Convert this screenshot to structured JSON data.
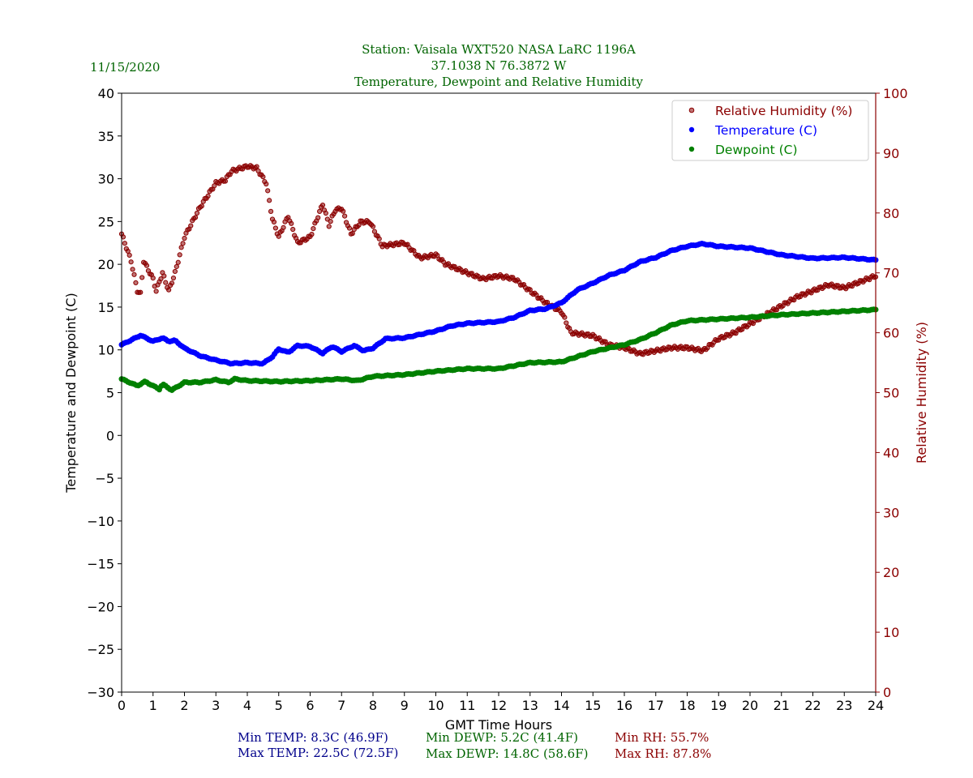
{
  "date": "11/15/2020",
  "title_lines": [
    "Station:  Vaisala WXT520  NASA LaRC 1196A",
    "37.1038 N 76.3872 W",
    "Temperature, Dewpoint and Relative Humidity"
  ],
  "stats": {
    "min_temp": "Min TEMP: 8.3C (46.9F)",
    "max_temp": "Max TEMP: 22.5C (72.5F)",
    "min_dewp": "Min DEWP: 5.2C (41.4F)",
    "max_dewp": "Max DEWP: 14.8C (58.6F)",
    "min_rh": "Min RH: 55.7%",
    "max_rh": "Max RH: 87.8%"
  },
  "colors": {
    "title": "#006400",
    "temp": "#0000ff",
    "dewp": "#008000",
    "rh": "#8b0000",
    "stat_temp": "#00008b"
  },
  "chart_data": {
    "type": "scatter",
    "xlabel": "GMT Time Hours",
    "ylabel": "Temperature and Dewpoint (C)",
    "y2label": "Relative Humidity (%)",
    "xlim": [
      0,
      24
    ],
    "ylim": [
      -30,
      40
    ],
    "y2lim": [
      0,
      100
    ],
    "xticks": [
      0,
      1,
      2,
      3,
      4,
      5,
      6,
      7,
      8,
      9,
      10,
      11,
      12,
      13,
      14,
      15,
      16,
      17,
      18,
      19,
      20,
      21,
      22,
      23,
      24
    ],
    "yticks": [
      -30,
      -25,
      -20,
      -15,
      -10,
      -5,
      0,
      5,
      10,
      15,
      20,
      25,
      30,
      35,
      40
    ],
    "y2ticks": [
      0,
      10,
      20,
      30,
      40,
      50,
      60,
      70,
      80,
      90,
      100
    ],
    "grid": false,
    "legend": "top-right",
    "series": [
      {
        "name": "Relative Humidity (%)",
        "axis": "right",
        "color": "#8b0000",
        "x": [
          0,
          0.3,
          0.5,
          0.6,
          0.7,
          1,
          1.1,
          1.3,
          1.5,
          1.7,
          2,
          2.5,
          3,
          3.3,
          3.5,
          4,
          4.3,
          4.6,
          4.8,
          5,
          5.3,
          5.6,
          6,
          6.4,
          6.6,
          6.8,
          7,
          7.3,
          7.6,
          7.9,
          8.3,
          9,
          9.5,
          10,
          10.3,
          11,
          11.5,
          12,
          12.5,
          13,
          13.5,
          14,
          14.3,
          15,
          15.5,
          16,
          16.5,
          17,
          17.5,
          18,
          18.5,
          19,
          19.5,
          20,
          20.5,
          21,
          21.5,
          22,
          22.5,
          23,
          23.5,
          24
        ],
        "y": [
          76.5,
          72,
          67,
          66.5,
          72,
          69,
          67,
          70,
          67,
          70,
          76,
          81,
          85,
          85.5,
          87,
          87.8,
          87.5,
          85,
          79,
          76,
          79.5,
          75,
          76,
          81.5,
          78,
          80.5,
          80.8,
          76.5,
          78.5,
          78.5,
          74.5,
          75,
          72.5,
          73,
          71.5,
          70,
          69,
          69.5,
          69,
          67,
          65,
          63.5,
          60,
          59.5,
          58,
          57.5,
          56.5,
          57,
          57.5,
          57.5,
          57,
          59,
          60,
          61.5,
          63,
          64.5,
          66,
          67,
          68,
          67.5,
          68.5,
          69.5
        ]
      },
      {
        "name": "Temperature (C)",
        "axis": "left",
        "color": "#0000ff",
        "x": [
          0,
          0.5,
          0.6,
          1,
          1.3,
          1.5,
          1.7,
          2,
          2.5,
          3,
          3.5,
          4,
          4.5,
          4.8,
          5,
          5.3,
          5.6,
          6,
          6.4,
          6.7,
          7,
          7.4,
          7.7,
          8,
          8.4,
          9,
          9.5,
          10,
          10.5,
          11,
          12,
          12.5,
          13,
          13.5,
          14,
          14.5,
          15,
          15.5,
          16,
          16.5,
          17,
          17.5,
          18,
          18.5,
          19,
          20,
          21,
          22,
          23,
          24
        ],
        "y": [
          10.6,
          11.5,
          11.7,
          11.0,
          11.4,
          11.0,
          11.1,
          10.2,
          9.3,
          8.8,
          8.4,
          8.5,
          8.4,
          9.2,
          10.1,
          9.7,
          10.5,
          10.4,
          9.6,
          10.4,
          9.8,
          10.5,
          9.9,
          10.2,
          11.3,
          11.4,
          11.8,
          12.2,
          12.8,
          13.1,
          13.3,
          13.8,
          14.6,
          14.8,
          15.5,
          17.0,
          17.8,
          18.7,
          19.3,
          20.3,
          20.8,
          21.6,
          22.1,
          22.4,
          22.1,
          21.9,
          21.1,
          20.7,
          20.8,
          20.5
        ]
      },
      {
        "name": "Dewpoint (C)",
        "axis": "left",
        "color": "#008000",
        "x": [
          0,
          0.5,
          0.75,
          1,
          1.2,
          1.3,
          1.6,
          2,
          2.5,
          3,
          3.4,
          3.6,
          4,
          5,
          6,
          7,
          7.5,
          8,
          9,
          10,
          11,
          12,
          13,
          14,
          14.5,
          15,
          15.5,
          16,
          16.5,
          17,
          17.5,
          18,
          19,
          20,
          21,
          22,
          23,
          24
        ],
        "y": [
          6.6,
          5.8,
          6.3,
          5.8,
          5.4,
          6.0,
          5.3,
          6.2,
          6.2,
          6.5,
          6.2,
          6.6,
          6.4,
          6.3,
          6.4,
          6.6,
          6.4,
          6.9,
          7.1,
          7.5,
          7.8,
          7.8,
          8.5,
          8.6,
          9.2,
          9.8,
          10.2,
          10.6,
          11.2,
          12.0,
          12.9,
          13.4,
          13.6,
          13.8,
          14.1,
          14.3,
          14.5,
          14.7
        ]
      }
    ]
  }
}
